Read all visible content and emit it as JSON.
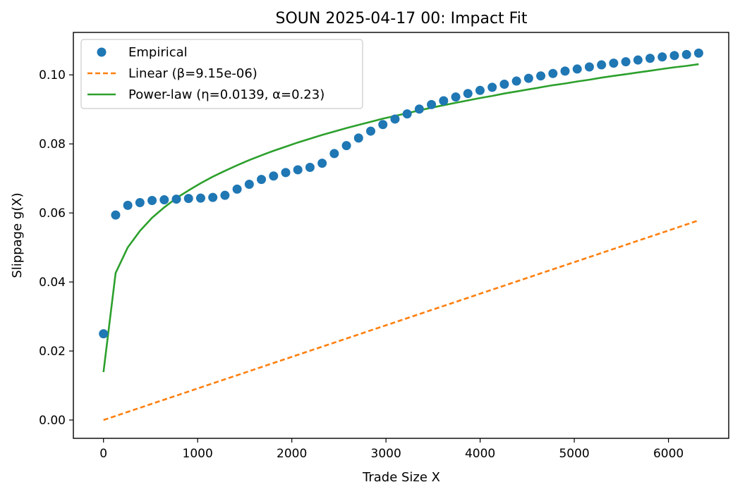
{
  "chart_data": {
    "type": "line",
    "title": "SOUN 2025-04-17 00: Impact Fit",
    "xlabel": "Trade Size X",
    "ylabel": "Slippage g(X)",
    "xlim": [
      -320,
      6640
    ],
    "ylim": [
      -0.0053,
      0.1123
    ],
    "xticks": [
      0,
      1000,
      2000,
      3000,
      4000,
      5000,
      6000
    ],
    "xtick_labels": [
      "0",
      "1000",
      "2000",
      "3000",
      "4000",
      "5000",
      "6000"
    ],
    "yticks": [
      0.0,
      0.02,
      0.04,
      0.06,
      0.08,
      0.1
    ],
    "ytick_labels": [
      "0.00",
      "0.02",
      "0.04",
      "0.06",
      "0.08",
      "0.10"
    ],
    "grid": false,
    "legend_position": "upper-left",
    "x": [
      0,
      129,
      258,
      387,
      516,
      645,
      774,
      903,
      1032,
      1161,
      1290,
      1419,
      1548,
      1677,
      1806,
      1935,
      2064,
      2193,
      2322,
      2451,
      2580,
      2709,
      2838,
      2967,
      3096,
      3225,
      3354,
      3483,
      3612,
      3741,
      3870,
      3999,
      4128,
      4257,
      4386,
      4515,
      4644,
      4773,
      4902,
      5031,
      5160,
      5289,
      5418,
      5547,
      5676,
      5805,
      5934,
      6063,
      6192,
      6321
    ],
    "series": [
      {
        "name": "Empirical",
        "style": "markers",
        "color": "#1f77b4",
        "values": [
          0.025,
          0.0594,
          0.0622,
          0.063,
          0.0636,
          0.0638,
          0.064,
          0.0642,
          0.0643,
          0.0645,
          0.0651,
          0.0669,
          0.0683,
          0.0697,
          0.0707,
          0.0717,
          0.0725,
          0.0732,
          0.0744,
          0.0772,
          0.0795,
          0.0817,
          0.0837,
          0.0856,
          0.0872,
          0.0887,
          0.0901,
          0.0914,
          0.0925,
          0.0936,
          0.0946,
          0.0955,
          0.0964,
          0.0973,
          0.0982,
          0.099,
          0.0997,
          0.1004,
          0.1011,
          0.1017,
          0.1023,
          0.1029,
          0.1034,
          0.1038,
          0.1043,
          0.1048,
          0.1052,
          0.1056,
          0.1059,
          0.1063
        ]
      },
      {
        "name": "Linear (β=9.15e-06)",
        "style": "dashed",
        "color": "#ff7f0e",
        "values": [
          0.0,
          0.00118,
          0.00236,
          0.00354,
          0.00472,
          0.0059,
          0.00708,
          0.00826,
          0.00944,
          0.01062,
          0.0118,
          0.01298,
          0.01416,
          0.01534,
          0.01652,
          0.0177,
          0.01889,
          0.02007,
          0.02125,
          0.02243,
          0.02361,
          0.02479,
          0.02597,
          0.02715,
          0.02833,
          0.02951,
          0.03069,
          0.03187,
          0.03305,
          0.03423,
          0.03541,
          0.03659,
          0.03777,
          0.03895,
          0.04013,
          0.04131,
          0.04249,
          0.04367,
          0.04485,
          0.04603,
          0.04721,
          0.04839,
          0.04957,
          0.05075,
          0.05194,
          0.05312,
          0.0543,
          0.05548,
          0.05666,
          0.05784
        ]
      },
      {
        "name": "Power-law (η=0.0139, α=0.23)",
        "style": "solid",
        "color": "#2ca02c",
        "values": [
          0.0139,
          0.0426,
          0.05,
          0.0548,
          0.0586,
          0.0616,
          0.0643,
          0.0665,
          0.0686,
          0.0705,
          0.0722,
          0.0738,
          0.0753,
          0.0767,
          0.078,
          0.0792,
          0.0804,
          0.0815,
          0.0826,
          0.0836,
          0.0846,
          0.0855,
          0.0864,
          0.0873,
          0.0881,
          0.0889,
          0.0897,
          0.0905,
          0.0912,
          0.0919,
          0.0926,
          0.0933,
          0.0939,
          0.0946,
          0.0952,
          0.0958,
          0.0964,
          0.097,
          0.0975,
          0.0981,
          0.0986,
          0.0992,
          0.0997,
          0.1002,
          0.1007,
          0.1012,
          0.1017,
          0.1022,
          0.1026,
          0.1031
        ]
      }
    ]
  }
}
